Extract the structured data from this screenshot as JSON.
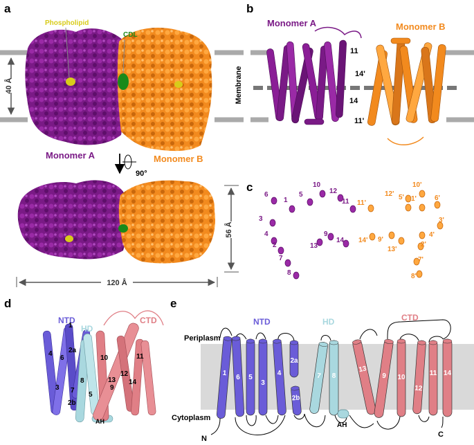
{
  "panels": {
    "a": "a",
    "b": "b",
    "c": "c",
    "d": "d",
    "e": "e"
  },
  "colors": {
    "monomer_a": "#7a1a86",
    "monomer_b": "#f28a1e",
    "ntd": "#6a5cd8",
    "hd": "#a9d8df",
    "ctd": "#e07f86",
    "membrane": "#d9d9d9",
    "phospholipid": "#d8cc1a",
    "cdl": "#1a8a1a"
  },
  "panel_a": {
    "phospholipid": "Phospholipid",
    "cdl": "CDL",
    "monomer_a": "Monomer A",
    "monomer_b": "Monomer B",
    "thickness": "40 Å",
    "rotation": "90°",
    "height": "56 Å",
    "width": "120 Å"
  },
  "panel_b": {
    "monomer_a": "Monomer A",
    "monomer_b": "Monomer B",
    "membrane": "Membrane",
    "helix_labels": [
      "11",
      "14'",
      "14",
      "11'"
    ]
  },
  "panel_c": {
    "a_labels": [
      "6",
      "1",
      "5",
      "10",
      "12",
      "11",
      "3",
      "4",
      "2",
      "13",
      "9",
      "14",
      "7",
      "8"
    ],
    "b_labels": [
      "12'",
      "10'",
      "5'",
      "1'",
      "6'",
      "11'",
      "3'",
      "14'",
      "9'",
      "13'",
      "4'",
      "2'",
      "7'",
      "8'"
    ]
  },
  "panel_d": {
    "ntd": "NTD",
    "hd": "HD",
    "ctd": "CTD",
    "ah": "AH",
    "helices": [
      "1",
      "4",
      "6",
      "2a",
      "3",
      "7",
      "8",
      "5",
      "2b",
      "10",
      "13",
      "12",
      "9",
      "11",
      "14"
    ]
  },
  "panel_e": {
    "ntd": "NTD",
    "hd": "HD",
    "ctd": "CTD",
    "periplasm": "Periplasm",
    "cytoplasm": "Cytoplasm",
    "n_term": "N",
    "c_term": "C",
    "ah": "AH",
    "helices": [
      "1",
      "6",
      "5",
      "3",
      "4",
      "2a",
      "2b",
      "7",
      "8",
      "13",
      "9",
      "10",
      "12",
      "11",
      "14"
    ]
  }
}
